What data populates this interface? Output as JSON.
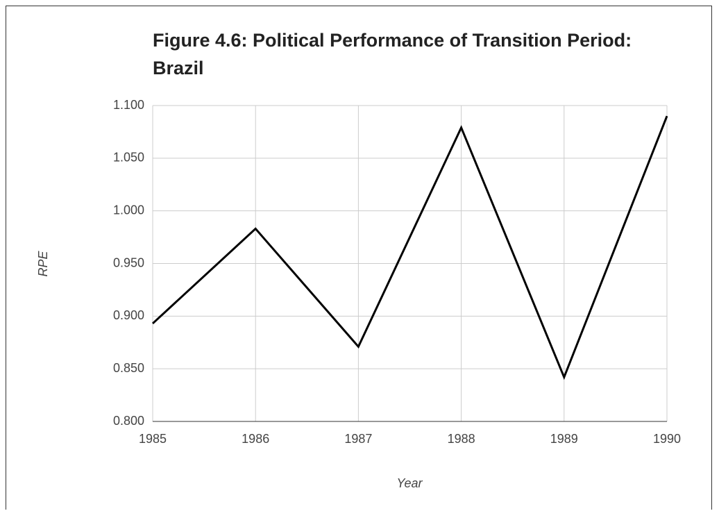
{
  "chart_data": {
    "type": "line",
    "title": "Figure 4.6: Political Performance of Transition Period: Brazil",
    "x_label": "Year",
    "y_label": "RPE",
    "x": [
      1985,
      1986,
      1987,
      1988,
      1989,
      1990
    ],
    "values": [
      0.893,
      0.983,
      0.871,
      1.079,
      0.842,
      1.09
    ],
    "color": "#000000",
    "xlim": [
      1985,
      1990
    ],
    "xticks": [
      1985,
      1986,
      1987,
      1988,
      1989,
      1990
    ],
    "ylim": [
      0.8,
      1.1
    ],
    "yticks": [
      {
        "value": 0.8,
        "label": "0.800"
      },
      {
        "value": 0.85,
        "label": "0.850"
      },
      {
        "value": 0.9,
        "label": "0.900"
      },
      {
        "value": 0.95,
        "label": "0.950"
      },
      {
        "value": 1.0,
        "label": "1.000"
      },
      {
        "value": 1.05,
        "label": "1.050"
      },
      {
        "value": 1.1,
        "label": "1.100"
      }
    ],
    "grid": true
  }
}
